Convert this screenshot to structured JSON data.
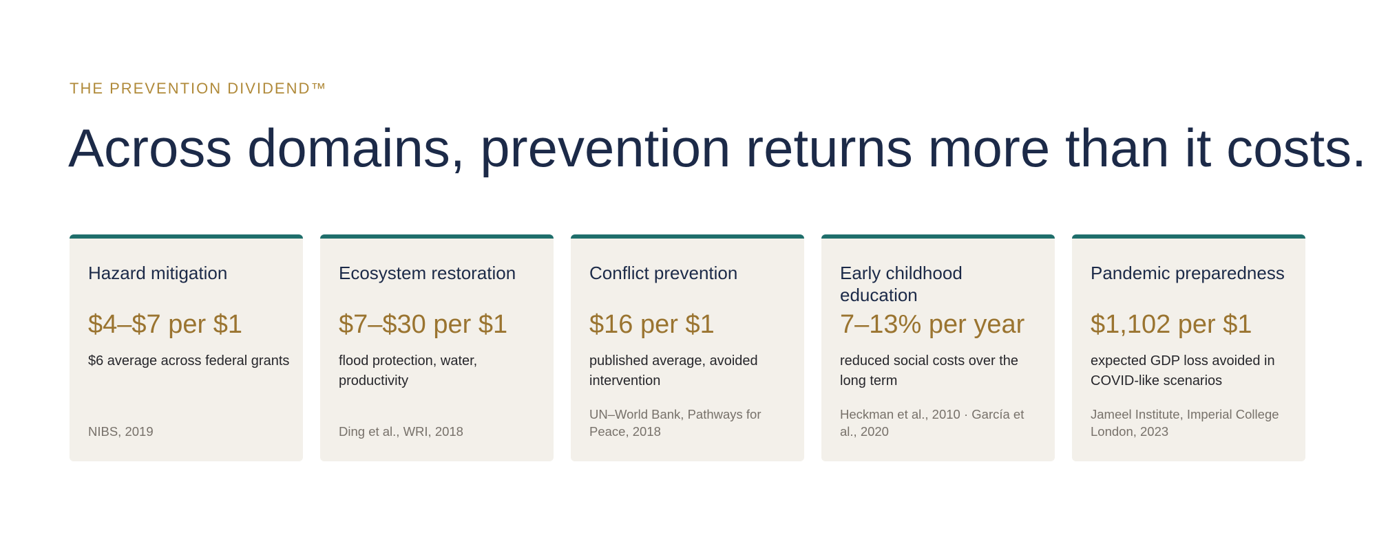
{
  "eyebrow": "THE PREVENTION DIVIDEND™",
  "headline": "Across domains, prevention returns more than it costs.",
  "colors": {
    "accent_teal": "#1f6e6b",
    "gold": "#9a7430",
    "navy": "#1c2a48",
    "card_bg": "#f3f0ea"
  },
  "cards": [
    {
      "title": "Hazard mitigation",
      "value": "$4–$7 per $1",
      "description": "$6 average across federal grants",
      "source": "NIBS, 2019"
    },
    {
      "title": "Ecosystem restoration",
      "value": "$7–$30 per $1",
      "description": "flood protection, water, productivity",
      "source": "Ding et al., WRI, 2018"
    },
    {
      "title": "Conflict prevention",
      "value": "$16 per $1",
      "description": "published average, avoided intervention",
      "source": "UN–World Bank, Pathways for Peace, 2018"
    },
    {
      "title": "Early childhood education",
      "value": "7–13% per year",
      "description": "reduced social costs over the long term",
      "source": "Heckman et al., 2010 · García et al., 2020"
    },
    {
      "title": "Pandemic preparedness",
      "value": "$1,102 per $1",
      "description": "expected GDP loss avoided in COVID-like scenarios",
      "source": "Jameel Institute, Imperial College London, 2023"
    }
  ]
}
